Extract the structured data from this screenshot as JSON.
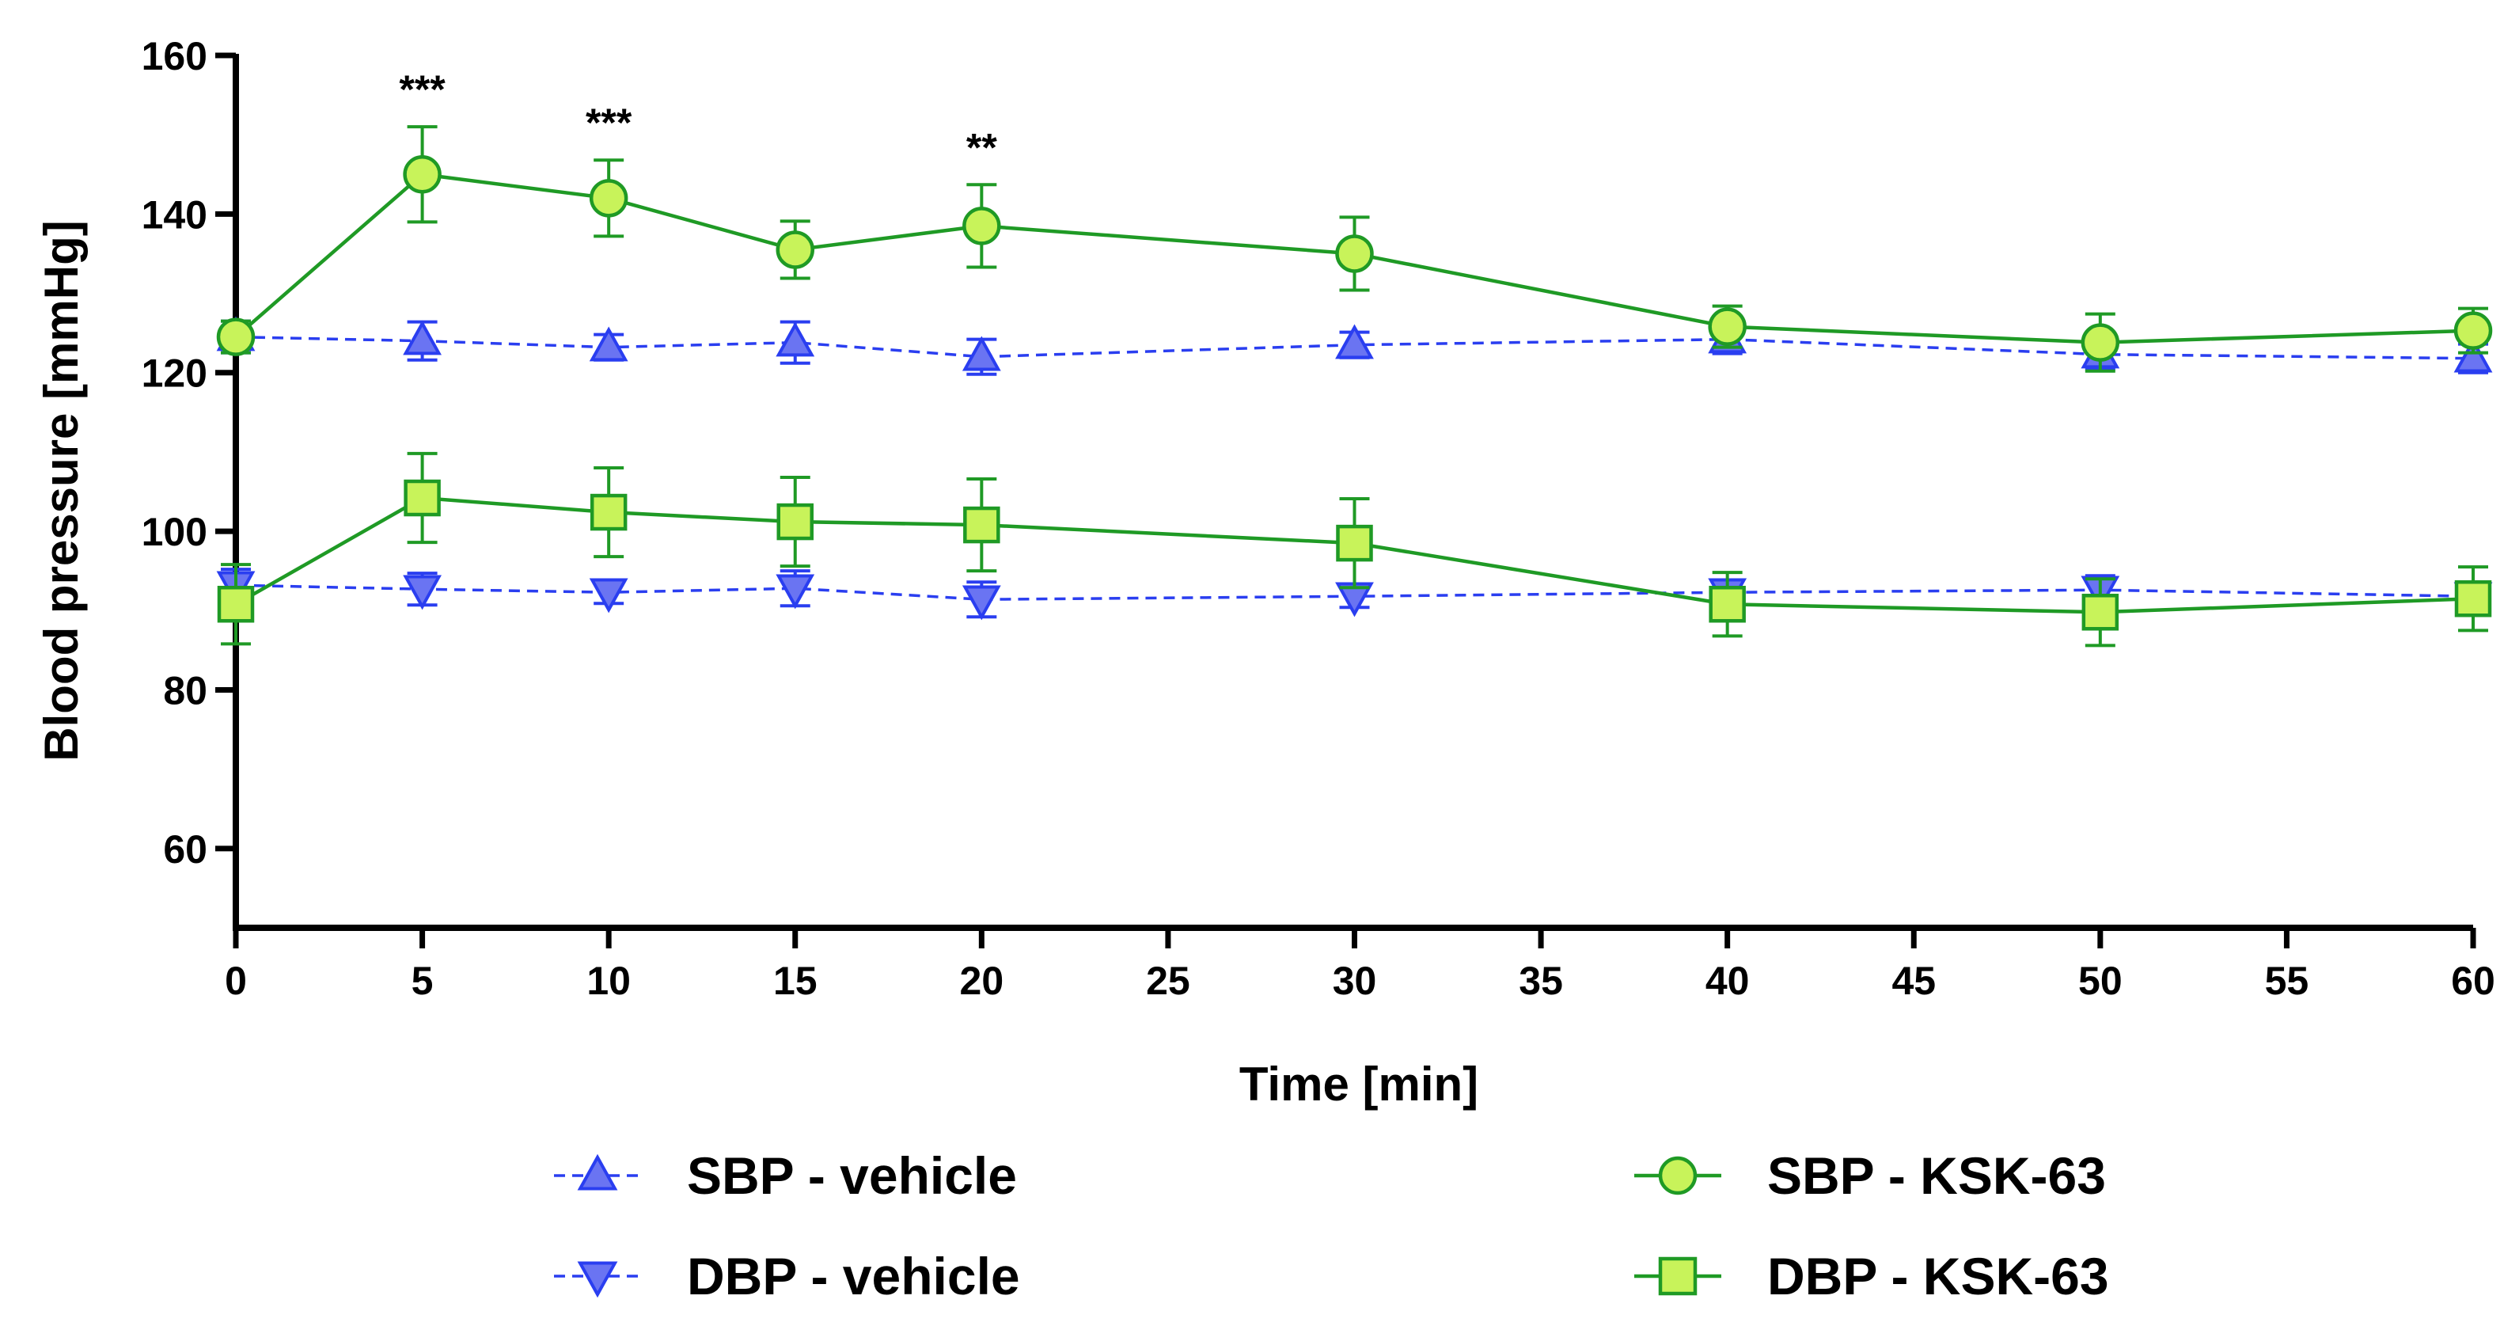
{
  "chart_data": {
    "type": "line",
    "title": "",
    "xlabel": "Time [min]",
    "ylabel": "Blood pressure [mmHg]",
    "xlim": [
      0,
      60
    ],
    "ylim": [
      50,
      160
    ],
    "xticks": [
      0,
      5,
      10,
      15,
      20,
      25,
      30,
      35,
      40,
      45,
      50,
      55,
      60
    ],
    "yticks": [
      60,
      80,
      100,
      120,
      140,
      160
    ],
    "x": [
      0,
      5,
      10,
      15,
      20,
      30,
      40,
      50,
      60
    ],
    "series": [
      {
        "name": "SBP - vehicle",
        "marker": "triangle-up",
        "line_style": "dashed",
        "color": "#2a3ef0",
        "fill": "#6a74f2",
        "values": [
          124.5,
          124.0,
          123.2,
          123.8,
          122.0,
          123.5,
          124.2,
          122.3,
          121.8
        ],
        "errors": [
          2.0,
          2.4,
          1.6,
          2.6,
          2.2,
          1.6,
          1.8,
          1.8,
          1.8
        ]
      },
      {
        "name": "DBP - vehicle",
        "marker": "triangle-down",
        "line_style": "dashed",
        "color": "#2a3ef0",
        "fill": "#6a74f2",
        "values": [
          93.2,
          92.7,
          92.3,
          92.8,
          91.4,
          91.8,
          92.3,
          92.6,
          91.8
        ],
        "errors": [
          2.0,
          2.0,
          1.4,
          2.2,
          2.2,
          1.4,
          1.4,
          1.8,
          1.6
        ]
      },
      {
        "name": "SBP - KSK-63",
        "marker": "circle",
        "line_style": "solid",
        "color": "#1f9a25",
        "fill": "#c8f35a",
        "values": [
          124.5,
          145.0,
          142.0,
          135.5,
          138.5,
          135.0,
          125.8,
          123.8,
          125.3
        ],
        "errors": [
          2.0,
          6.0,
          4.8,
          3.6,
          5.2,
          4.6,
          2.6,
          3.6,
          2.8
        ]
      },
      {
        "name": "DBP - KSK-63",
        "marker": "square",
        "line_style": "solid",
        "color": "#1f9a25",
        "fill": "#c8f35a",
        "values": [
          90.8,
          104.2,
          102.4,
          101.2,
          100.8,
          98.5,
          90.8,
          89.8,
          91.5
        ],
        "errors": [
          5.0,
          5.6,
          5.6,
          5.6,
          5.8,
          5.6,
          4.0,
          4.2,
          4.0
        ]
      }
    ],
    "annotations": [
      {
        "x": 5,
        "text": "***"
      },
      {
        "x": 10,
        "text": "***"
      },
      {
        "x": 20,
        "text": "**"
      }
    ],
    "legend": "bottom"
  }
}
